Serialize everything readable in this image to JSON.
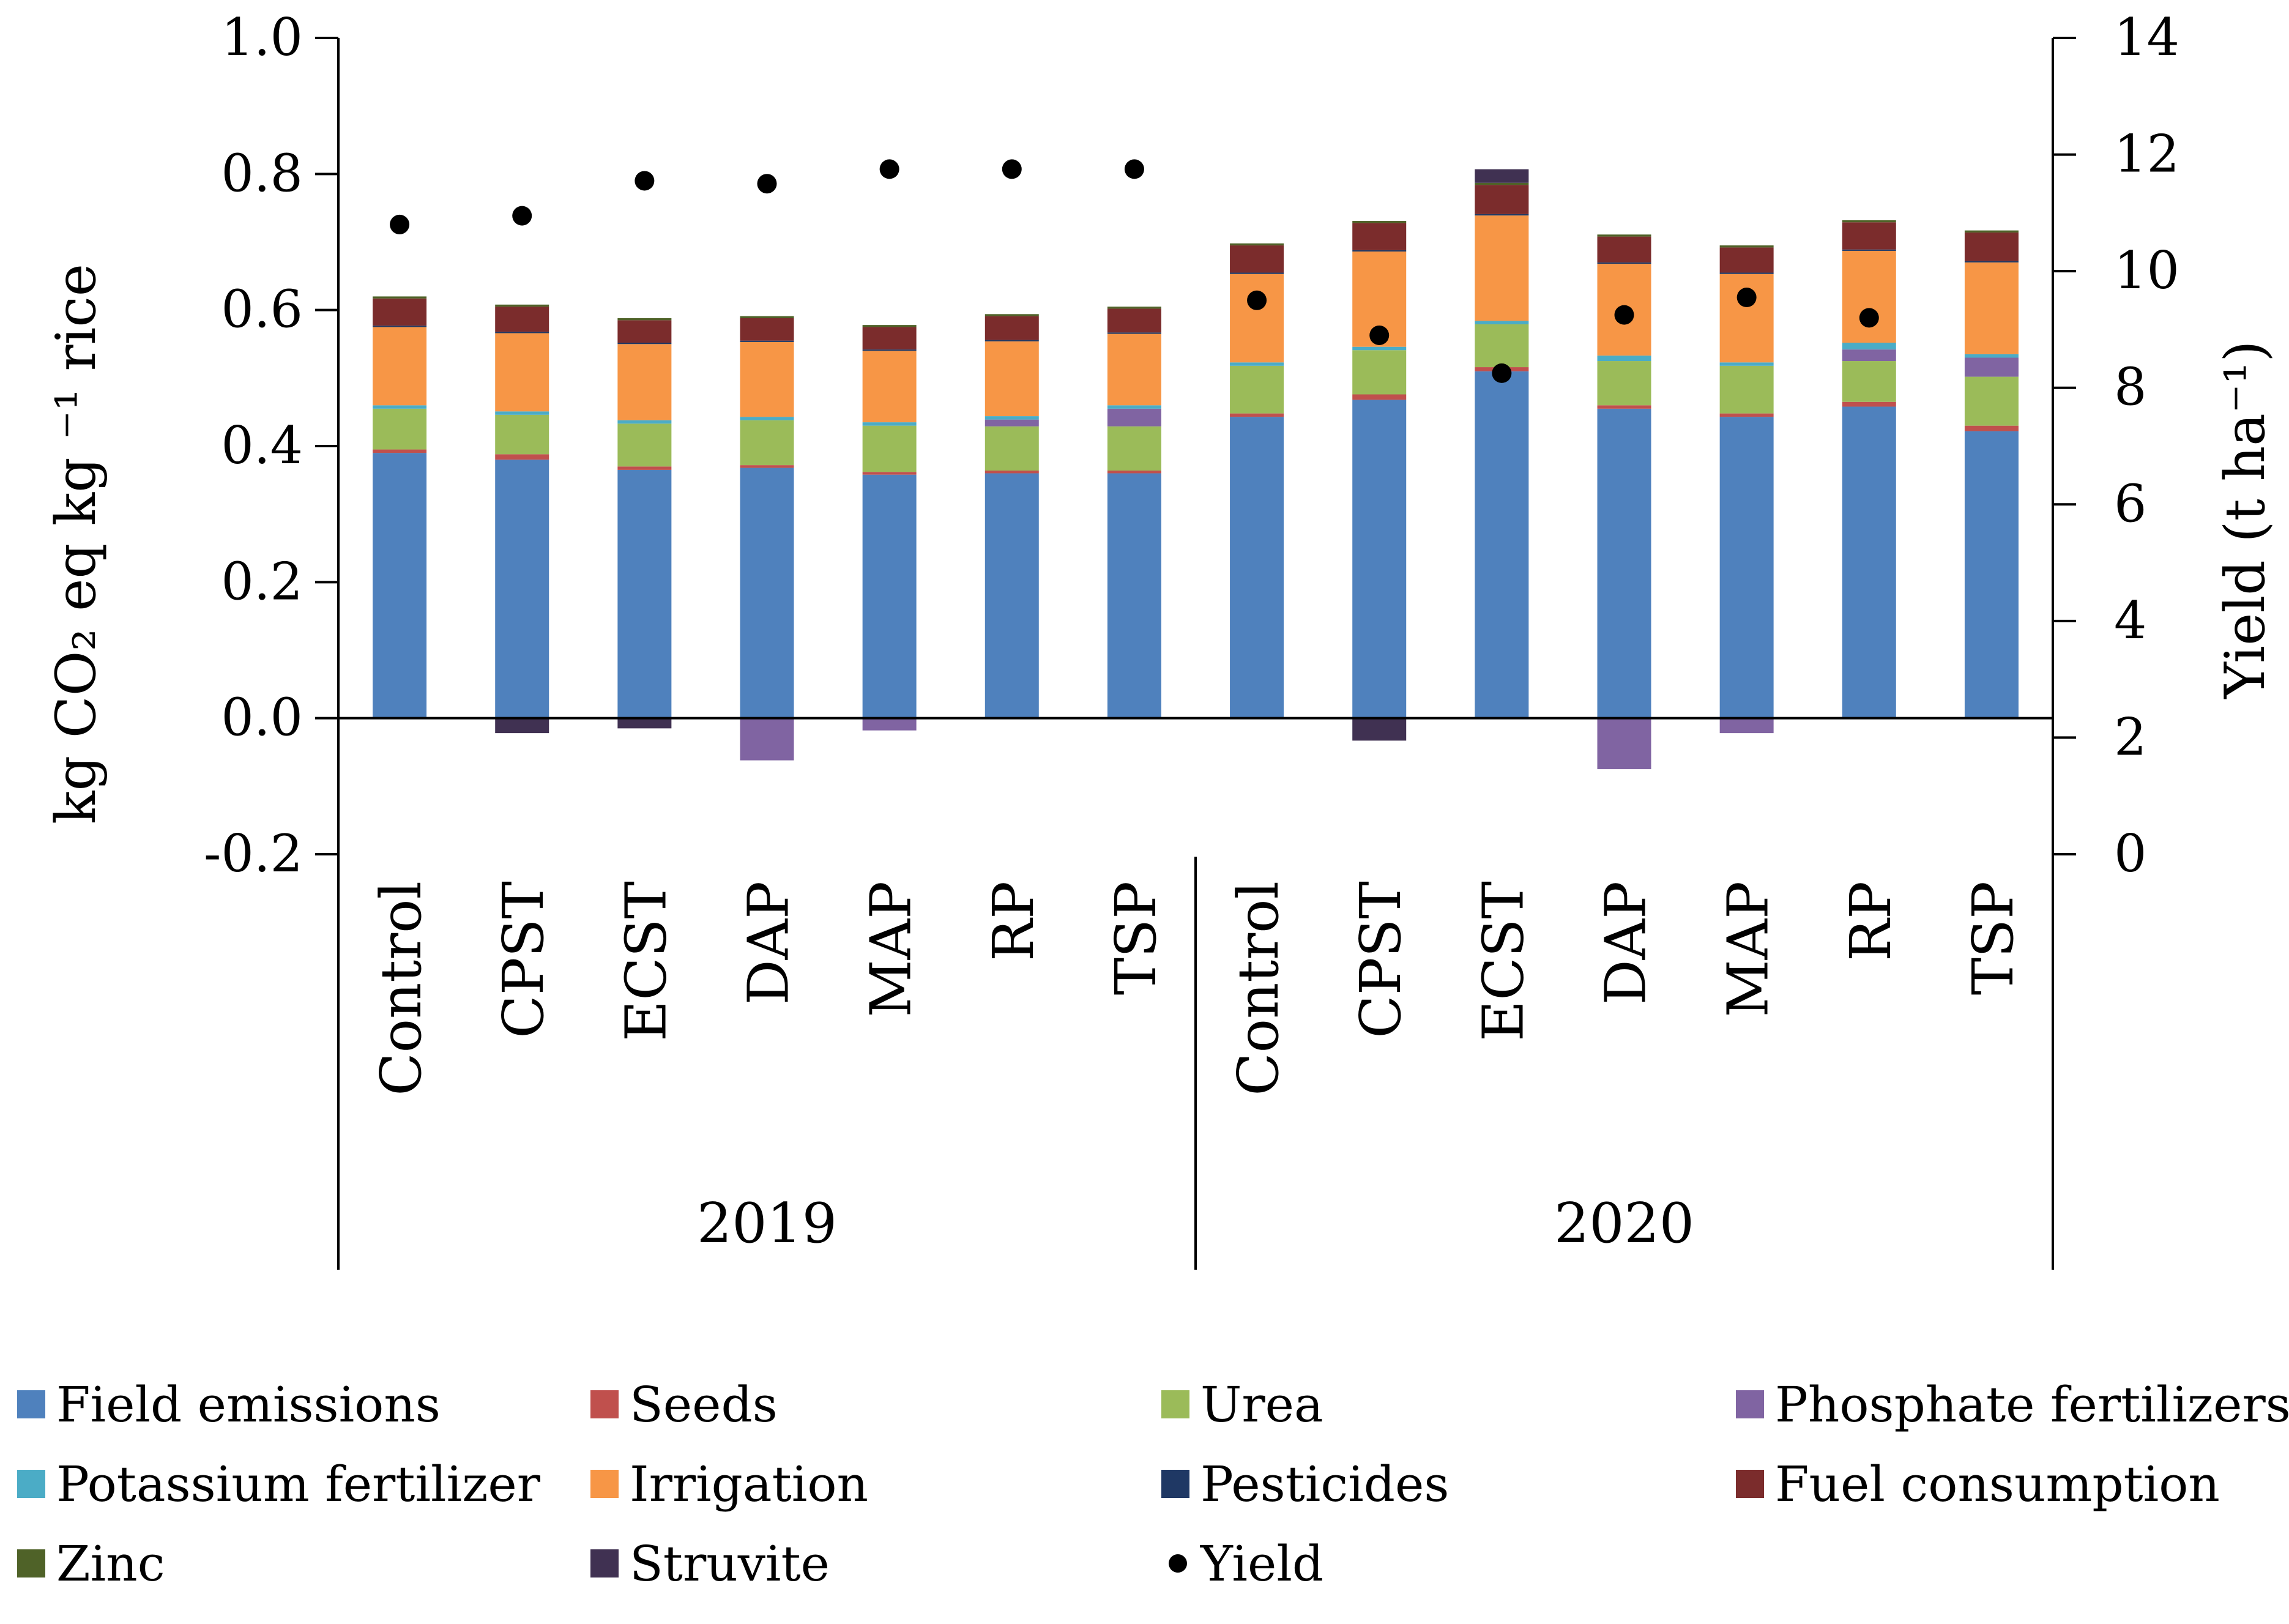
{
  "chart_data": {
    "type": "bar",
    "stacked": true,
    "categories": [
      "Control",
      "CPST",
      "ECST",
      "DAP",
      "MAP",
      "RP",
      "TSP",
      "Control",
      "CPST",
      "ECST",
      "DAP",
      "MAP",
      "RP",
      "TSP"
    ],
    "groups": [
      {
        "label": "2019",
        "from": 0,
        "to": 6
      },
      {
        "label": "2020",
        "from": 7,
        "to": 13
      }
    ],
    "y_left": {
      "label": "kg CO₂ eq kg ⁻¹ rice",
      "ylim": [
        -0.2,
        1.0
      ],
      "ticks": [
        "-0.2",
        "0.0",
        "0.2",
        "0.4",
        "0.6",
        "0.8",
        "1.0"
      ]
    },
    "y_right": {
      "label": "Yield (t ha⁻¹)",
      "ylim": [
        0,
        14
      ],
      "ticks": [
        "0",
        "2",
        "4",
        "6",
        "8",
        "10",
        "12",
        "14"
      ]
    },
    "series": [
      {
        "name": "Field emissions",
        "color": "#4f81bd",
        "values": [
          0.39,
          0.38,
          0.365,
          0.368,
          0.358,
          0.36,
          0.36,
          0.443,
          0.468,
          0.51,
          0.455,
          0.443,
          0.458,
          0.422
        ]
      },
      {
        "name": "Seeds",
        "color": "#c0504d",
        "values": [
          0.005,
          0.008,
          0.005,
          0.004,
          0.004,
          0.004,
          0.004,
          0.005,
          0.008,
          0.006,
          0.005,
          0.005,
          0.007,
          0.008
        ]
      },
      {
        "name": "Urea",
        "color": "#9bbb59",
        "values": [
          0.06,
          0.058,
          0.063,
          0.066,
          0.068,
          0.065,
          0.065,
          0.07,
          0.065,
          0.063,
          0.065,
          0.07,
          0.06,
          0.072
        ]
      },
      {
        "name": "Phosphate fertilizers",
        "color": "#8064a2",
        "values": [
          0,
          0,
          0,
          0,
          0,
          0.01,
          0.026,
          0,
          0,
          0,
          0,
          0,
          0.017,
          0.028
        ]
      },
      {
        "name": "Potassium fertilizer",
        "color": "#4bacc6",
        "values": [
          0.005,
          0.005,
          0.005,
          0.005,
          0.005,
          0.005,
          0.005,
          0.005,
          0.005,
          0.005,
          0.008,
          0.005,
          0.01,
          0.005
        ]
      },
      {
        "name": "Irrigation",
        "color": "#f79646",
        "values": [
          0.115,
          0.115,
          0.112,
          0.11,
          0.105,
          0.11,
          0.105,
          0.13,
          0.14,
          0.155,
          0.135,
          0.13,
          0.135,
          0.135
        ]
      },
      {
        "name": "Pesticides",
        "color": "#1f3864",
        "values": [
          0.002,
          0.002,
          0.002,
          0.002,
          0.002,
          0.002,
          0.002,
          0.002,
          0.002,
          0.002,
          0.002,
          0.002,
          0.002,
          0.002
        ]
      },
      {
        "name": "Fuel consumption",
        "color": "#7b2c2c",
        "values": [
          0.04,
          0.037,
          0.033,
          0.033,
          0.033,
          0.035,
          0.035,
          0.04,
          0.04,
          0.043,
          0.038,
          0.037,
          0.04,
          0.042
        ]
      },
      {
        "name": "Zinc",
        "color": "#4f6228",
        "values": [
          0.003,
          0.003,
          0.003,
          0.003,
          0.003,
          0.003,
          0.003,
          0.003,
          0.003,
          0.003,
          0.003,
          0.003,
          0.003,
          0.003
        ]
      },
      {
        "name": "Struvite",
        "color": "#403152",
        "values": [
          0,
          0,
          0,
          0,
          0,
          0,
          0,
          0,
          0,
          0.02,
          0,
          0,
          0,
          0
        ]
      }
    ],
    "negative_series": [
      {
        "name": "Struvite",
        "color": "#403152",
        "values": [
          0,
          -0.022,
          -0.015,
          0,
          0,
          0,
          0,
          0,
          -0.033,
          0,
          0,
          0,
          0,
          0
        ]
      },
      {
        "name": "Phosphate fertilizers",
        "color": "#8064a2",
        "values": [
          0,
          0,
          0,
          -0.062,
          -0.018,
          0,
          0,
          0,
          0,
          0,
          -0.075,
          -0.022,
          0,
          0
        ]
      }
    ],
    "yield": {
      "name": "Yield",
      "color": "#000000",
      "values": [
        10.8,
        10.95,
        11.55,
        11.5,
        11.75,
        11.75,
        11.75,
        9.5,
        8.9,
        8.25,
        9.25,
        9.55,
        9.2,
        null
      ]
    }
  },
  "legend": {
    "items": [
      {
        "name": "Field emissions",
        "color": "#4f81bd",
        "kind": "box"
      },
      {
        "name": "Seeds",
        "color": "#c0504d",
        "kind": "box"
      },
      {
        "name": "Urea",
        "color": "#9bbb59",
        "kind": "box"
      },
      {
        "name": "Phosphate fertilizers",
        "color": "#8064a2",
        "kind": "box"
      },
      {
        "name": "Potassium fertilizer",
        "color": "#4bacc6",
        "kind": "box"
      },
      {
        "name": "Irrigation",
        "color": "#f79646",
        "kind": "box"
      },
      {
        "name": "Pesticides",
        "color": "#1f3864",
        "kind": "box"
      },
      {
        "name": "Fuel consumption",
        "color": "#7b2c2c",
        "kind": "box"
      },
      {
        "name": "Zinc",
        "color": "#4f6228",
        "kind": "box"
      },
      {
        "name": "Struvite",
        "color": "#403152",
        "kind": "box"
      },
      {
        "name": "Yield",
        "color": "#000000",
        "kind": "dot"
      }
    ]
  }
}
